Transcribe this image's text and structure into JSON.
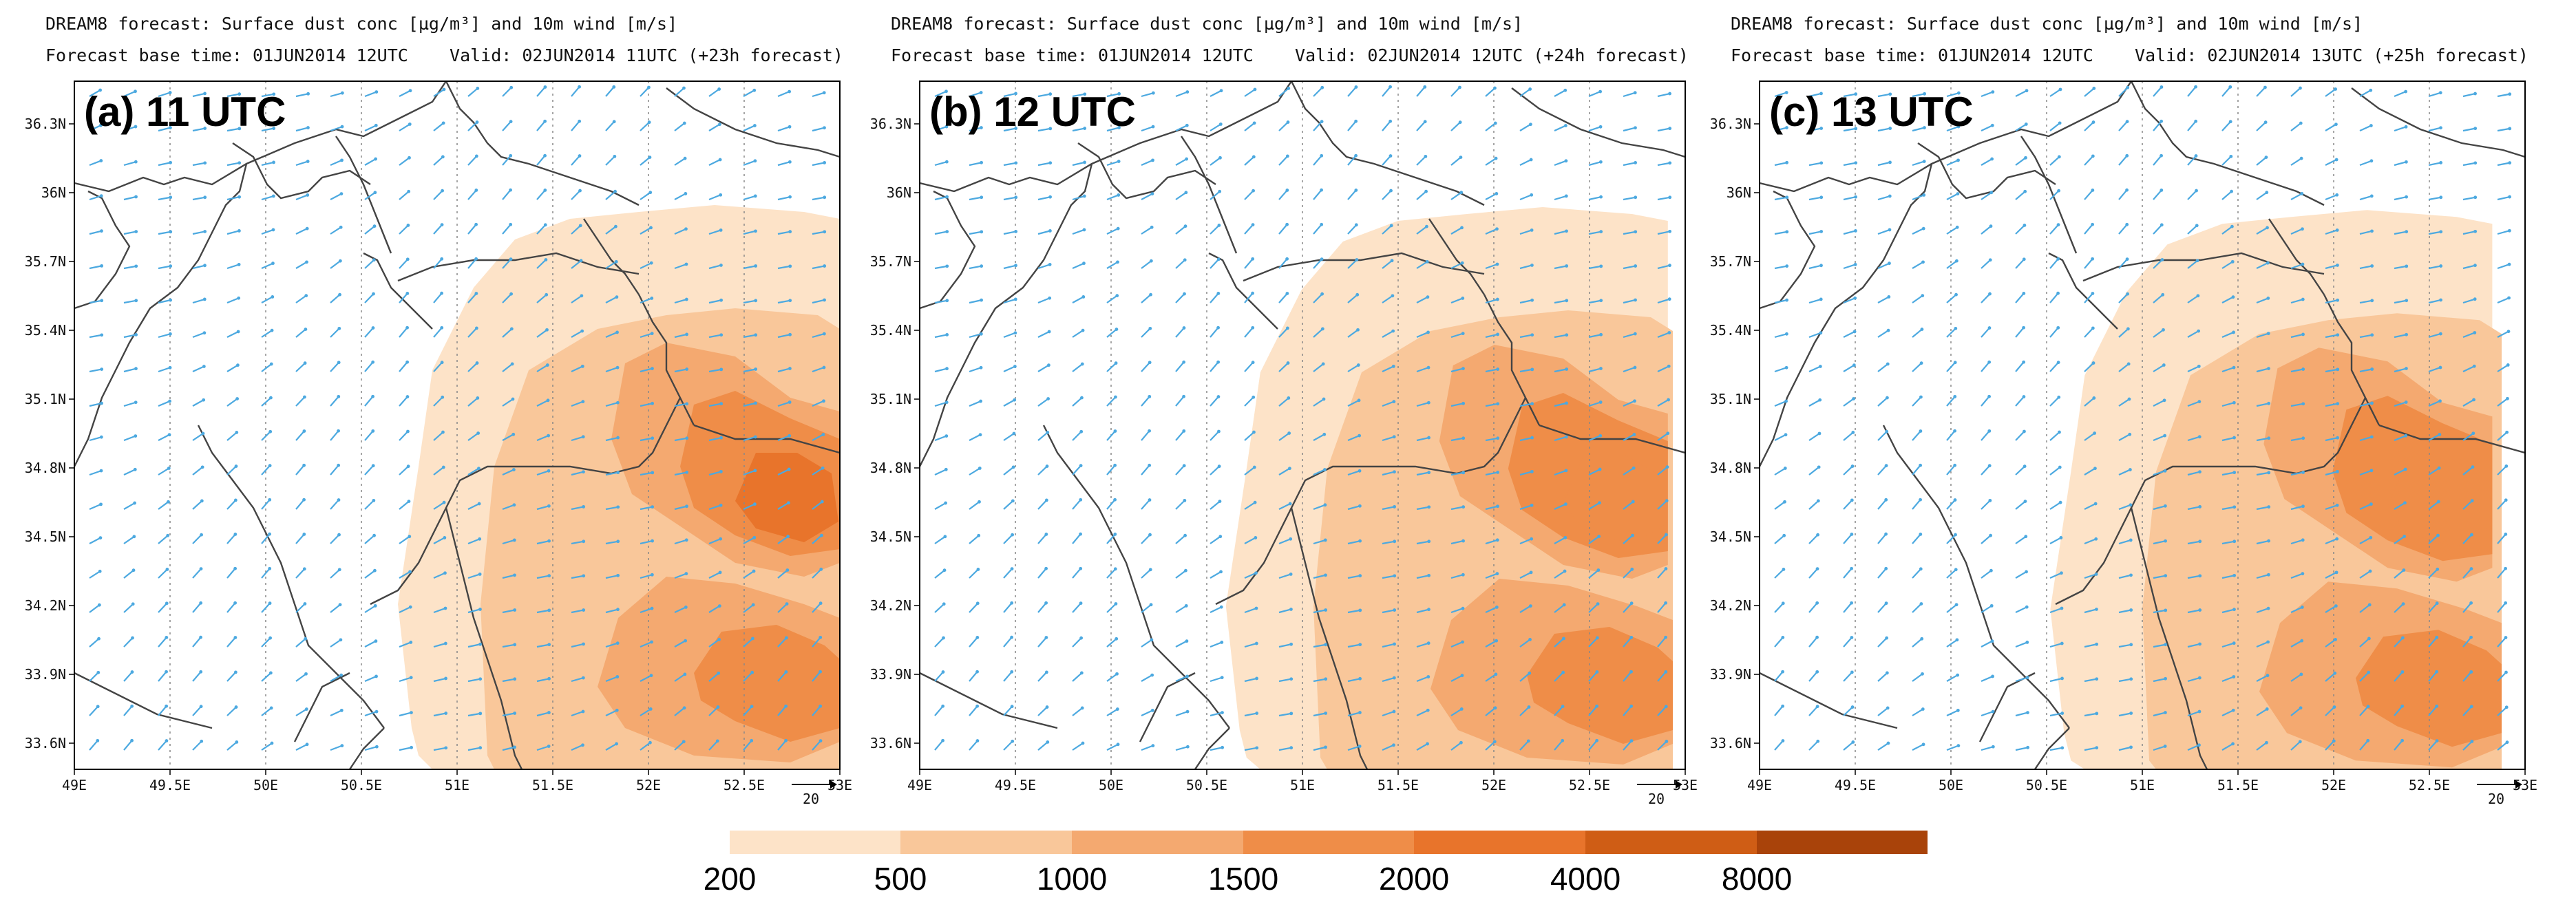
{
  "header": {
    "title": "DREAM8 forecast: Surface dust conc [µg/m³] and 10m wind [m/s]",
    "base_time": "Forecast base time: 01JUN2014 12UTC"
  },
  "panels": [
    {
      "label": "(a) 11 UTC",
      "valid": "Valid: 02JUN2014 11UTC (+23h forecast)"
    },
    {
      "label": "(b) 12 UTC",
      "valid": "Valid: 02JUN2014 12UTC (+24h forecast)"
    },
    {
      "label": "(c) 13 UTC",
      "valid": "Valid: 02JUN2014 13UTC (+25h forecast)"
    }
  ],
  "axes": {
    "lon_labels": [
      "49E",
      "49.5E",
      "50E",
      "50.5E",
      "51E",
      "51.5E",
      "52E",
      "52.5E",
      "53E"
    ],
    "lat_labels": [
      "36.3N",
      "36N",
      "35.7N",
      "35.4N",
      "35.1N",
      "34.8N",
      "34.5N",
      "34.2N",
      "33.9N",
      "33.6N"
    ]
  },
  "wind_reference": "20",
  "colorbar": {
    "labels": [
      "200",
      "500",
      "1000",
      "1500",
      "2000",
      "4000",
      "8000"
    ],
    "colors": [
      "#fde3c8",
      "#f9c79a",
      "#f4a970",
      "#ef8d48",
      "#e8742b",
      "#cf5d15",
      "#a9430a"
    ]
  }
}
